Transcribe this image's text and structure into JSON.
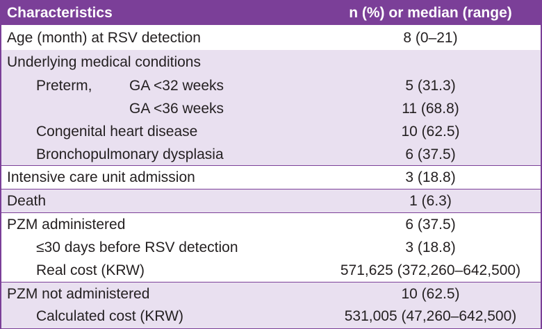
{
  "header": {
    "col1": "Characteristics",
    "col2": "n (%) or median (range)"
  },
  "rows": [
    {
      "label": "Age (month) at RSV detection",
      "value": "8 (0–21)"
    },
    {
      "label": "Underlying medical conditions",
      "value": ""
    },
    {
      "label": "Preterm,",
      "sublabel": "GA <32 weeks",
      "value": "5 (31.3)"
    },
    {
      "label": "",
      "sublabel": "GA <36 weeks",
      "value": "11 (68.8)"
    },
    {
      "label": "Congenital heart disease",
      "value": "10 (62.5)"
    },
    {
      "label": "Bronchopulmonary dysplasia",
      "value": "6 (37.5)"
    },
    {
      "label": "Intensive care unit admission",
      "value": "3 (18.8)"
    },
    {
      "label": "Death",
      "value": "1 (6.3)"
    },
    {
      "label": "PZM administered",
      "value": "6 (37.5)"
    },
    {
      "label": "≤30 days before RSV detection",
      "value": "3 (18.8)"
    },
    {
      "label": "Real cost (KRW)",
      "value": "571,625 (372,260–642,500)"
    },
    {
      "label": "PZM not administered",
      "value": "10 (62.5)"
    },
    {
      "label": "Calculated cost (KRW)",
      "value": "531,005 (47,260–642,500)"
    }
  ]
}
